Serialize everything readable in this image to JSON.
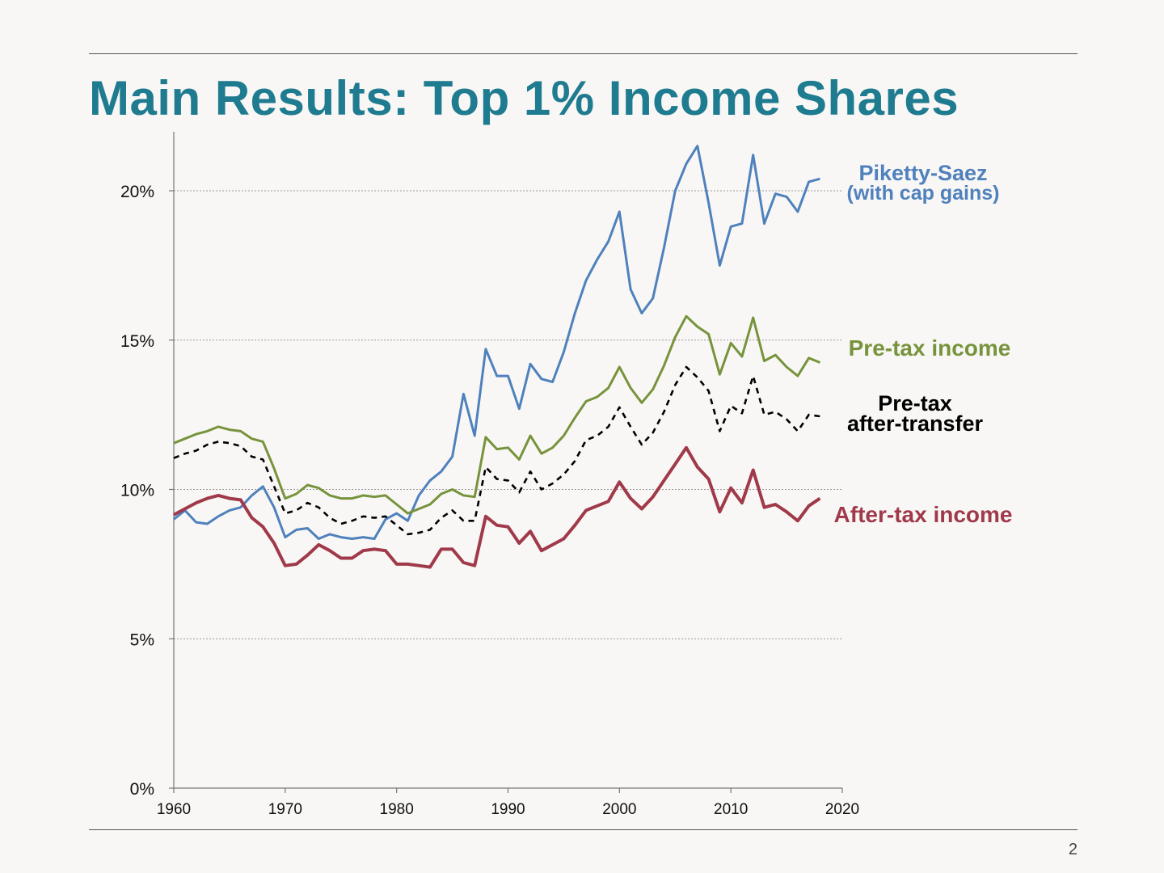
{
  "slide": {
    "title": "Main Results: Top 1% Income Shares",
    "page_number": "2"
  },
  "chart_data": {
    "type": "line",
    "title": "",
    "xlabel": "",
    "ylabel": "",
    "xlim": [
      1960,
      2020
    ],
    "ylim": [
      0,
      22
    ],
    "x_ticks": [
      1960,
      1970,
      1980,
      1990,
      2000,
      2010,
      2020
    ],
    "y_ticks": [
      0,
      5,
      10,
      15,
      20
    ],
    "y_tick_labels": [
      "0%",
      "5%",
      "10%",
      "15%",
      "20%"
    ],
    "gridlines": "horizontal dotted",
    "legend": "direct labels at right end of lines",
    "series": [
      {
        "name": "Piketty-Saez",
        "name_line2": "(with cap gains)",
        "color": "#4f81bd",
        "dash": "solid",
        "x": [
          1960,
          1961,
          1962,
          1963,
          1964,
          1965,
          1966,
          1967,
          1968,
          1969,
          1970,
          1971,
          1972,
          1973,
          1974,
          1975,
          1976,
          1977,
          1978,
          1979,
          1980,
          1981,
          1982,
          1983,
          1984,
          1985,
          1986,
          1987,
          1988,
          1989,
          1990,
          1991,
          1992,
          1993,
          1994,
          1995,
          1996,
          1997,
          1998,
          1999,
          2000,
          2001,
          2002,
          2003,
          2004,
          2005,
          2006,
          2007,
          2008,
          2009,
          2010,
          2011,
          2012,
          2013,
          2014,
          2015,
          2016,
          2017,
          2018
        ],
        "y": [
          9.0,
          9.3,
          8.9,
          8.85,
          9.1,
          9.3,
          9.4,
          9.8,
          10.1,
          9.4,
          8.4,
          8.65,
          8.7,
          8.35,
          8.5,
          8.4,
          8.35,
          8.4,
          8.35,
          9.0,
          9.2,
          8.95,
          9.8,
          10.3,
          10.6,
          11.1,
          13.2,
          11.8,
          14.7,
          13.8,
          13.8,
          12.7,
          14.2,
          13.7,
          13.6,
          14.6,
          15.9,
          17.0,
          17.7,
          18.3,
          19.3,
          16.7,
          15.9,
          16.4,
          18.1,
          20.0,
          20.9,
          21.5,
          19.6,
          17.5,
          18.8,
          18.9,
          21.2,
          18.9,
          19.9,
          19.8,
          19.3,
          20.3,
          20.4
        ]
      },
      {
        "name": "Pre-tax income",
        "color": "#77933c",
        "dash": "solid",
        "x": [
          1960,
          1961,
          1962,
          1963,
          1964,
          1965,
          1966,
          1967,
          1968,
          1969,
          1970,
          1971,
          1972,
          1973,
          1974,
          1975,
          1976,
          1977,
          1978,
          1979,
          1980,
          1981,
          1982,
          1983,
          1984,
          1985,
          1986,
          1987,
          1988,
          1989,
          1990,
          1991,
          1992,
          1993,
          1994,
          1995,
          1996,
          1997,
          1998,
          1999,
          2000,
          2001,
          2002,
          2003,
          2004,
          2005,
          2006,
          2007,
          2008,
          2009,
          2010,
          2011,
          2012,
          2013,
          2014,
          2015,
          2016,
          2017,
          2018
        ],
        "y": [
          11.55,
          11.7,
          11.85,
          11.95,
          12.1,
          12.0,
          11.95,
          11.7,
          11.6,
          10.7,
          9.7,
          9.85,
          10.15,
          10.05,
          9.8,
          9.7,
          9.7,
          9.8,
          9.75,
          9.8,
          9.5,
          9.2,
          9.35,
          9.5,
          9.85,
          10.0,
          9.8,
          9.75,
          11.75,
          11.35,
          11.4,
          11.0,
          11.8,
          11.2,
          11.4,
          11.8,
          12.4,
          12.95,
          13.1,
          13.4,
          14.1,
          13.4,
          12.9,
          13.35,
          14.15,
          15.1,
          15.8,
          15.45,
          15.2,
          13.85,
          14.9,
          14.45,
          15.75,
          14.3,
          14.5,
          14.1,
          13.8,
          14.4,
          14.25
        ]
      },
      {
        "name": "Pre-tax",
        "name_line2": "after-transfer",
        "color": "#000000",
        "dash": "dashed",
        "x": [
          1960,
          1961,
          1962,
          1963,
          1964,
          1965,
          1966,
          1967,
          1968,
          1969,
          1970,
          1971,
          1972,
          1973,
          1974,
          1975,
          1976,
          1977,
          1978,
          1979,
          1980,
          1981,
          1982,
          1983,
          1984,
          1985,
          1986,
          1987,
          1988,
          1989,
          1990,
          1991,
          1992,
          1993,
          1994,
          1995,
          1996,
          1997,
          1998,
          1999,
          2000,
          2001,
          2002,
          2003,
          2004,
          2005,
          2006,
          2007,
          2008,
          2009,
          2010,
          2011,
          2012,
          2013,
          2014,
          2015,
          2016,
          2017,
          2018
        ],
        "y": [
          11.05,
          11.2,
          11.3,
          11.5,
          11.6,
          11.55,
          11.45,
          11.1,
          11.0,
          10.1,
          9.2,
          9.3,
          9.55,
          9.4,
          9.05,
          8.85,
          8.95,
          9.1,
          9.05,
          9.1,
          8.8,
          8.5,
          8.55,
          8.65,
          9.05,
          9.3,
          8.95,
          8.95,
          10.75,
          10.35,
          10.3,
          9.9,
          10.6,
          10.0,
          10.2,
          10.5,
          10.95,
          11.65,
          11.8,
          12.1,
          12.75,
          12.1,
          11.5,
          11.9,
          12.6,
          13.5,
          14.1,
          13.75,
          13.3,
          11.95,
          12.8,
          12.55,
          13.8,
          12.5,
          12.6,
          12.35,
          11.95,
          12.5,
          12.45
        ]
      },
      {
        "name": "After-tax income",
        "color": "#a0394a",
        "dash": "solid",
        "x": [
          1960,
          1961,
          1962,
          1963,
          1964,
          1965,
          1966,
          1967,
          1968,
          1969,
          1970,
          1971,
          1972,
          1973,
          1974,
          1975,
          1976,
          1977,
          1978,
          1979,
          1980,
          1981,
          1982,
          1983,
          1984,
          1985,
          1986,
          1987,
          1988,
          1989,
          1990,
          1991,
          1992,
          1993,
          1994,
          1995,
          1996,
          1997,
          1998,
          1999,
          2000,
          2001,
          2002,
          2003,
          2004,
          2005,
          2006,
          2007,
          2008,
          2009,
          2010,
          2011,
          2012,
          2013,
          2014,
          2015,
          2016,
          2017,
          2018
        ],
        "y": [
          9.15,
          9.35,
          9.55,
          9.7,
          9.8,
          9.7,
          9.65,
          9.05,
          8.75,
          8.2,
          7.45,
          7.5,
          7.8,
          8.15,
          7.95,
          7.7,
          7.7,
          7.95,
          8.0,
          7.95,
          7.5,
          7.5,
          7.45,
          7.4,
          8.0,
          8.0,
          7.55,
          7.45,
          9.1,
          8.8,
          8.75,
          8.2,
          8.6,
          7.95,
          8.15,
          8.35,
          8.8,
          9.3,
          9.45,
          9.6,
          10.25,
          9.7,
          9.35,
          9.75,
          10.3,
          10.85,
          11.4,
          10.75,
          10.35,
          9.25,
          10.05,
          9.55,
          10.65,
          9.4,
          9.5,
          9.25,
          8.95,
          9.45,
          9.7
        ]
      }
    ]
  }
}
